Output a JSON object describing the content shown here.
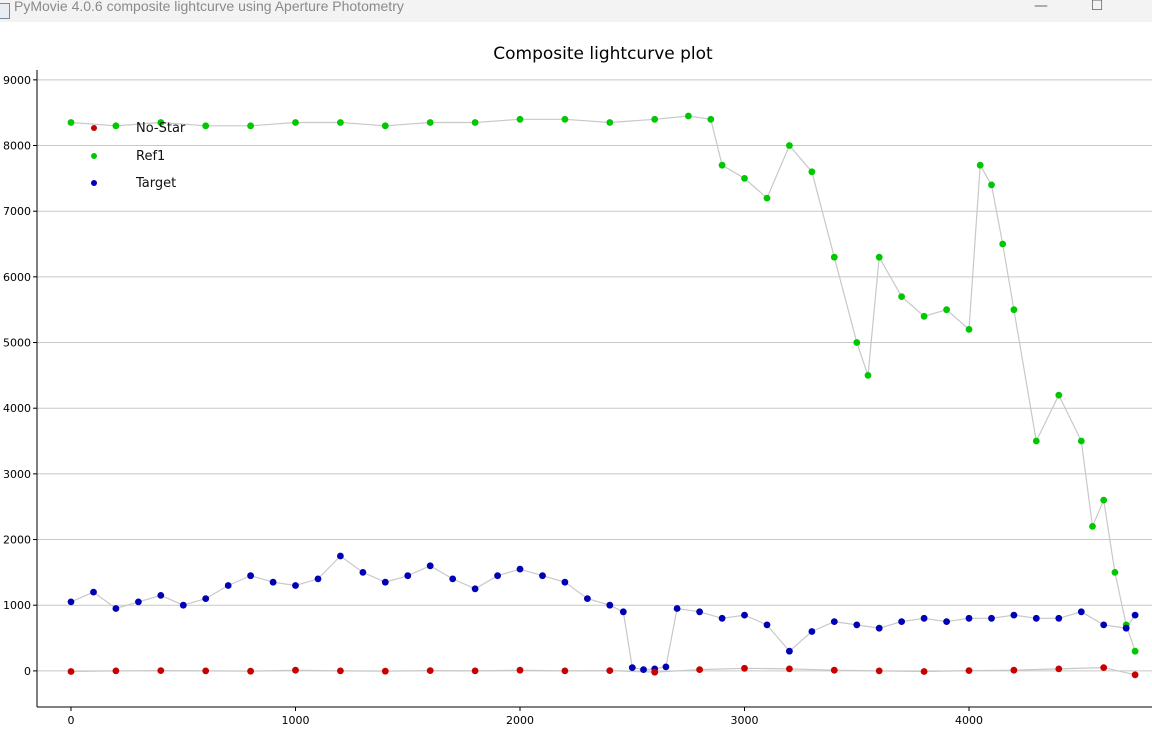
{
  "window": {
    "title": "PyMovie 4.0.6 composite lightcurve using Aperture Photometry",
    "minimize": "—",
    "maximize": "☐"
  },
  "chart_data": {
    "type": "scatter",
    "title": "Composite lightcurve plot",
    "xlabel": "",
    "ylabel": "",
    "xlim": [
      -100,
      4760
    ],
    "ylim": [
      -550,
      9150
    ],
    "x_ticks": [
      0,
      1000,
      2000,
      3000,
      4000
    ],
    "y_ticks": [
      0,
      1000,
      2000,
      3000,
      4000,
      5000,
      6000,
      7000,
      8000,
      9000
    ],
    "grid": "horizontal",
    "legend_position": "top-left",
    "connecting_lines": true,
    "connecting_line_color": "#c8c8c8",
    "colors": {
      "No-Star": "#c80000",
      "Ref1": "#00c800",
      "Target": "#0000b4"
    },
    "series": [
      {
        "name": "No-Star",
        "color": "#c80000",
        "x": [
          0,
          200,
          400,
          600,
          800,
          1000,
          1200,
          1400,
          1600,
          1800,
          2000,
          2200,
          2400,
          2600,
          2800,
          3000,
          3200,
          3400,
          3600,
          3800,
          4000,
          4200,
          4400,
          4600,
          4740
        ],
        "y": [
          -10,
          0,
          5,
          0,
          -5,
          10,
          0,
          -5,
          5,
          0,
          10,
          0,
          5,
          -20,
          20,
          40,
          30,
          10,
          0,
          -10,
          5,
          10,
          30,
          50,
          -60
        ]
      },
      {
        "name": "Ref1",
        "color": "#00c800",
        "x": [
          0,
          200,
          400,
          600,
          800,
          1000,
          1200,
          1400,
          1600,
          1800,
          2000,
          2200,
          2400,
          2600,
          2750,
          2850,
          2900,
          3000,
          3100,
          3200,
          3300,
          3400,
          3500,
          3550,
          3600,
          3700,
          3800,
          3900,
          4000,
          4050,
          4100,
          4150,
          4200,
          4300,
          4400,
          4500,
          4550,
          4600,
          4650,
          4700,
          4740
        ],
        "y": [
          8350,
          8300,
          8350,
          8300,
          8300,
          8350,
          8350,
          8300,
          8350,
          8350,
          8400,
          8400,
          8350,
          8400,
          8450,
          8400,
          7700,
          7500,
          7200,
          8000,
          7600,
          6300,
          5000,
          4500,
          6300,
          5700,
          5400,
          5500,
          5200,
          7700,
          7400,
          6500,
          5500,
          3500,
          4200,
          3500,
          2200,
          2600,
          1500,
          700,
          300
        ]
      },
      {
        "name": "Target",
        "color": "#0000b4",
        "x": [
          0,
          100,
          200,
          300,
          400,
          500,
          600,
          700,
          800,
          900,
          1000,
          1100,
          1200,
          1300,
          1400,
          1500,
          1600,
          1700,
          1800,
          1900,
          2000,
          2100,
          2200,
          2300,
          2400,
          2460,
          2500,
          2550,
          2600,
          2650,
          2700,
          2800,
          2900,
          3000,
          3100,
          3200,
          3300,
          3400,
          3500,
          3600,
          3700,
          3800,
          3900,
          4000,
          4100,
          4200,
          4300,
          4400,
          4500,
          4600,
          4700,
          4740
        ],
        "y": [
          1050,
          1200,
          950,
          1050,
          1150,
          1000,
          1100,
          1300,
          1450,
          1350,
          1300,
          1400,
          1750,
          1500,
          1350,
          1450,
          1600,
          1400,
          1250,
          1450,
          1550,
          1450,
          1350,
          1100,
          1000,
          900,
          50,
          20,
          30,
          60,
          950,
          900,
          800,
          850,
          700,
          300,
          600,
          750,
          700,
          650,
          750,
          800,
          750,
          800,
          800,
          850,
          800,
          800,
          900,
          700,
          650,
          850
        ]
      }
    ]
  }
}
